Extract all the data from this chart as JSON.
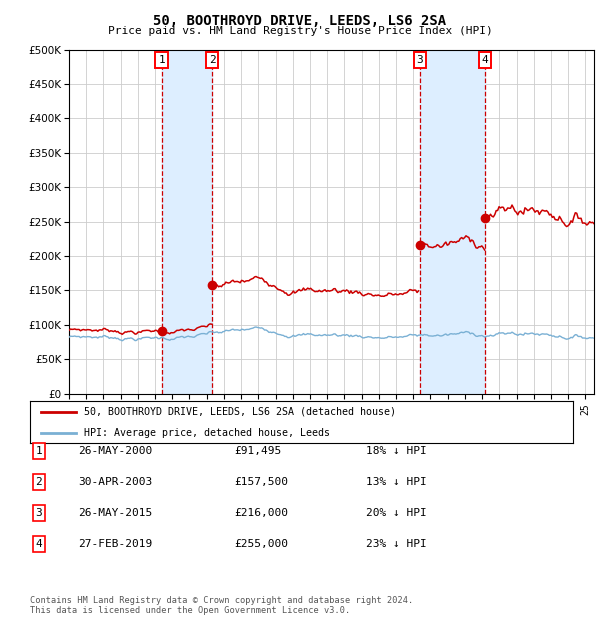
{
  "title": "50, BOOTHROYD DRIVE, LEEDS, LS6 2SA",
  "subtitle": "Price paid vs. HM Land Registry's House Price Index (HPI)",
  "ylim": [
    0,
    500000
  ],
  "yticks": [
    0,
    50000,
    100000,
    150000,
    200000,
    250000,
    300000,
    350000,
    400000,
    450000,
    500000
  ],
  "ytick_labels": [
    "£0",
    "£50K",
    "£100K",
    "£150K",
    "£200K",
    "£250K",
    "£300K",
    "£350K",
    "£400K",
    "£450K",
    "£500K"
  ],
  "xlim_start": 1995.0,
  "xlim_end": 2025.5,
  "transactions": [
    {
      "num": 1,
      "date": "26-MAY-2000",
      "price": 91495,
      "year": 2000.38,
      "label": "1"
    },
    {
      "num": 2,
      "date": "30-APR-2003",
      "price": 157500,
      "year": 2003.32,
      "label": "2"
    },
    {
      "num": 3,
      "date": "26-MAY-2015",
      "price": 216000,
      "year": 2015.38,
      "label": "3"
    },
    {
      "num": 4,
      "date": "27-FEB-2019",
      "price": 255000,
      "year": 2019.15,
      "label": "4"
    }
  ],
  "legend_line1": "50, BOOTHROYD DRIVE, LEEDS, LS6 2SA (detached house)",
  "legend_line2": "HPI: Average price, detached house, Leeds",
  "table_rows": [
    [
      "1",
      "26-MAY-2000",
      "£91,495",
      "18% ↓ HPI"
    ],
    [
      "2",
      "30-APR-2003",
      "£157,500",
      "13% ↓ HPI"
    ],
    [
      "3",
      "26-MAY-2015",
      "£216,000",
      "20% ↓ HPI"
    ],
    [
      "4",
      "27-FEB-2019",
      "£255,000",
      "23% ↓ HPI"
    ]
  ],
  "footnote": "Contains HM Land Registry data © Crown copyright and database right 2024.\nThis data is licensed under the Open Government Licence v3.0.",
  "line_color_red": "#cc0000",
  "line_color_blue": "#7ab0d4",
  "shade_color": "#ddeeff",
  "grid_color": "#cccccc",
  "bg": "#ffffff"
}
